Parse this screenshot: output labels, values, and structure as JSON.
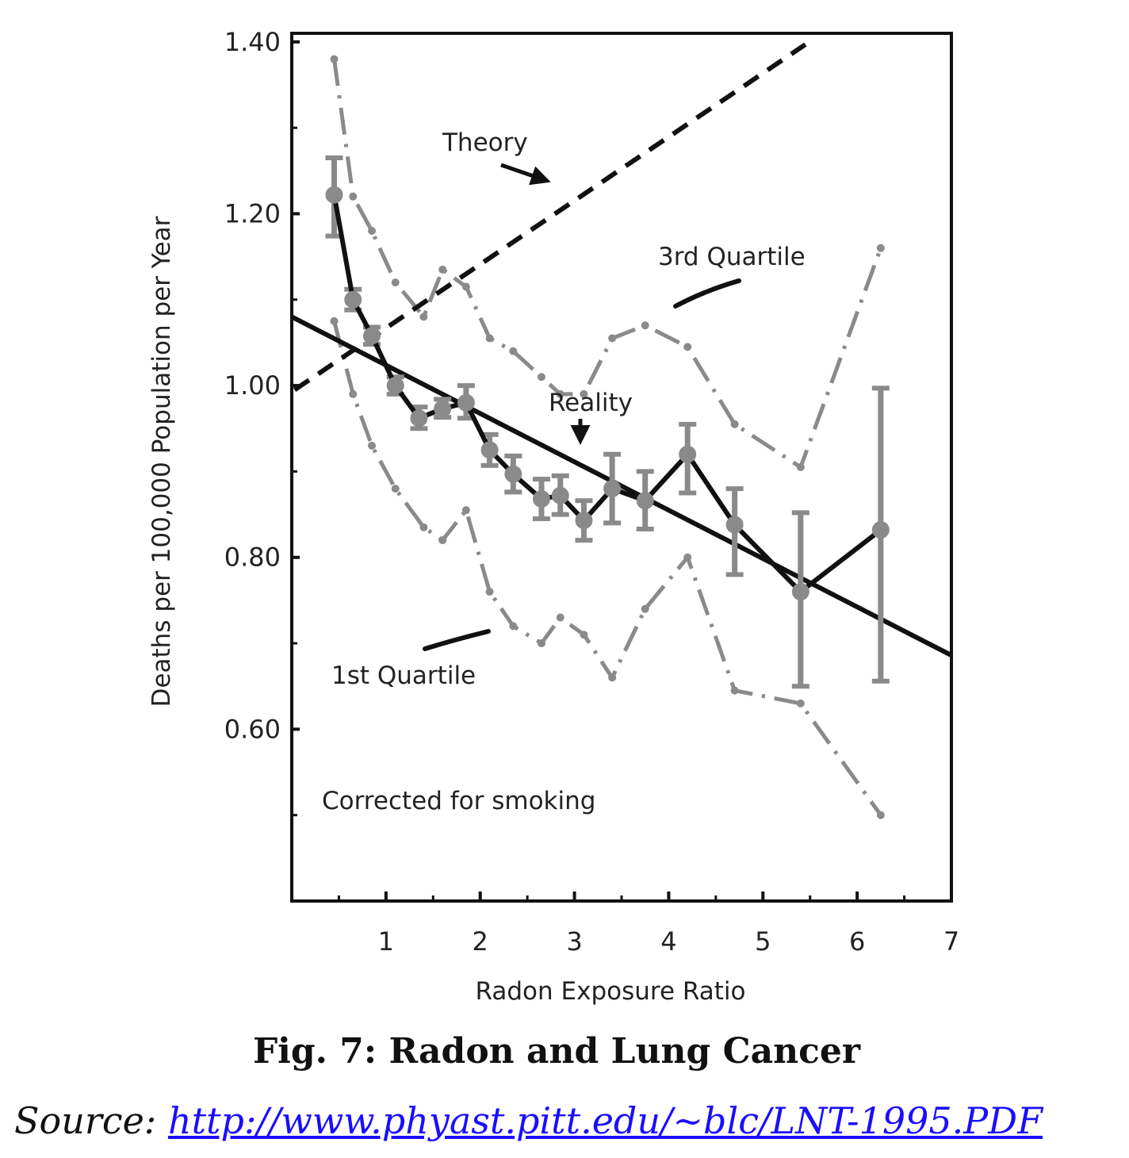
{
  "chart_data": {
    "type": "line",
    "xlabel": "Radon Exposure Ratio",
    "ylabel": "Deaths per 100,000 Population per Year",
    "xlim": [
      0,
      7
    ],
    "ylim": [
      0.4,
      1.41
    ],
    "x_ticks": [
      1,
      2,
      3,
      4,
      5,
      6,
      7
    ],
    "x_tick_labels": [
      "1",
      "2",
      "3",
      "4",
      "5",
      "6",
      "7"
    ],
    "y_ticks": [
      0.6,
      0.8,
      1.0,
      1.2,
      1.4
    ],
    "y_tick_labels": [
      "0.60",
      "0.80",
      "1.00",
      "1.20",
      "1.40"
    ],
    "grid": false,
    "annotations": {
      "theory": "Theory",
      "third_quartile": "3rd Quartile",
      "reality": "Reality",
      "first_quartile": "1st Quartile",
      "corrected": "Corrected for smoking"
    },
    "series": [
      {
        "id": "theory",
        "style": "dashed",
        "color": "#111111",
        "x": [
          0.03,
          5.45
        ],
        "y": [
          0.995,
          1.397
        ]
      },
      {
        "id": "fit",
        "style": "solid",
        "color": "#111111",
        "x": [
          0.0,
          7.0
        ],
        "y": [
          1.08,
          0.686
        ]
      },
      {
        "id": "reality",
        "style": "solid",
        "color": "#111111",
        "marker_color": "#8a8a8a",
        "x": [
          0.45,
          0.65,
          0.85,
          1.1,
          1.35,
          1.6,
          1.85,
          2.1,
          2.35,
          2.65,
          2.85,
          3.1,
          3.4,
          3.75,
          4.2,
          4.7,
          5.4,
          6.25
        ],
        "y": [
          1.222,
          1.1,
          1.058,
          1.0,
          0.962,
          0.973,
          0.98,
          0.925,
          0.897,
          0.868,
          0.872,
          0.843,
          0.88,
          0.866,
          0.92,
          0.838,
          0.76,
          0.832
        ],
        "error_low": [
          1.174,
          1.088,
          1.048,
          0.99,
          0.95,
          0.963,
          0.962,
          0.907,
          0.876,
          0.845,
          0.85,
          0.82,
          0.84,
          0.833,
          0.875,
          0.78,
          0.65,
          0.656
        ],
        "error_high": [
          1.265,
          1.112,
          1.068,
          1.01,
          0.975,
          0.984,
          1.0,
          0.943,
          0.918,
          0.891,
          0.895,
          0.866,
          0.92,
          0.9,
          0.955,
          0.88,
          0.852,
          0.997
        ]
      },
      {
        "id": "q3",
        "style": "dash-dot",
        "color": "#8a8a8a",
        "x": [
          0.45,
          0.65,
          0.85,
          1.1,
          1.4,
          1.6,
          1.85,
          2.1,
          2.35,
          2.65,
          2.85,
          3.1,
          3.4,
          3.75,
          4.2,
          4.7,
          5.4,
          6.25
        ],
        "y": [
          1.38,
          1.22,
          1.18,
          1.12,
          1.08,
          1.135,
          1.115,
          1.055,
          1.04,
          1.01,
          0.99,
          0.99,
          1.055,
          1.07,
          1.045,
          0.955,
          0.905,
          1.16
        ]
      },
      {
        "id": "q1",
        "style": "dash-dot",
        "color": "#8a8a8a",
        "x": [
          0.45,
          0.65,
          0.85,
          1.1,
          1.4,
          1.6,
          1.85,
          2.1,
          2.35,
          2.65,
          2.85,
          3.1,
          3.4,
          3.75,
          4.2,
          4.7,
          5.4,
          6.25
        ],
        "y": [
          1.075,
          0.99,
          0.93,
          0.88,
          0.835,
          0.82,
          0.855,
          0.76,
          0.72,
          0.7,
          0.73,
          0.71,
          0.66,
          0.74,
          0.8,
          0.645,
          0.63,
          0.5
        ]
      }
    ]
  },
  "figure": {
    "title": "Fig. 7: Radon and Lung Cancer",
    "source_prefix": "Source:",
    "source_url": "http://www.phyast.pitt.edu/~blc/LNT-1995.PDF"
  }
}
